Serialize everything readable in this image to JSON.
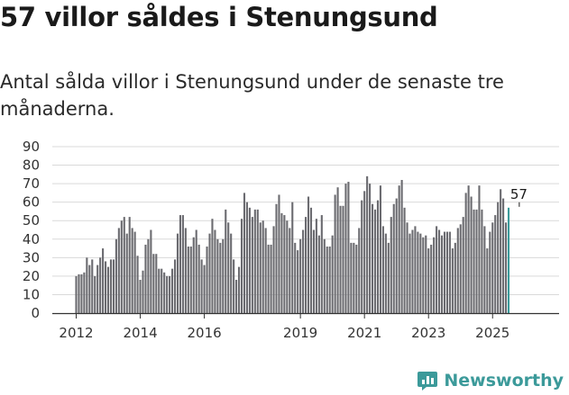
{
  "header": {
    "title": "57 villor såldes i Stenungsund",
    "subtitle": "Antal sålda villor i Stenungsund under de senaste tre månaderna."
  },
  "brand": {
    "name": "Newsworthy",
    "icon": "newsworthy-logo-icon",
    "color": "#3c9a9a"
  },
  "chart_data": {
    "type": "bar",
    "title": "57 villor såldes i Stenungsund",
    "subtitle": "Antal sålda villor i Stenungsund under de senaste tre månaderna.",
    "xlabel": "",
    "ylabel": "",
    "ylim": [
      0,
      90
    ],
    "yticks": [
      0,
      10,
      20,
      30,
      40,
      50,
      60,
      70,
      80,
      90
    ],
    "grid": true,
    "colors": {
      "bar": "#6b6b70",
      "highlight": "#3c9a9a"
    },
    "x_start": "2012-01",
    "x_end": "2025-12",
    "x_ticks": [
      {
        "label": "2012",
        "index": 0
      },
      {
        "label": "2014",
        "index": 24
      },
      {
        "label": "2016",
        "index": 48
      },
      {
        "label": "2019",
        "index": 84
      },
      {
        "label": "2021",
        "index": 108
      },
      {
        "label": "2023",
        "index": 132
      },
      {
        "label": "2025",
        "index": 156
      }
    ],
    "values": [
      20,
      21,
      21,
      22,
      30,
      26,
      29,
      20,
      26,
      30,
      35,
      28,
      25,
      29,
      29,
      40,
      46,
      50,
      52,
      43,
      52,
      46,
      44,
      31,
      18,
      23,
      37,
      40,
      45,
      32,
      32,
      24,
      24,
      22,
      20,
      20,
      24,
      29,
      43,
      53,
      53,
      46,
      36,
      36,
      41,
      45,
      37,
      29,
      26,
      36,
      43,
      51,
      45,
      40,
      38,
      40,
      56,
      49,
      43,
      29,
      18,
      25,
      51,
      65,
      60,
      57,
      52,
      56,
      56,
      49,
      50,
      46,
      37,
      37,
      47,
      59,
      64,
      54,
      53,
      50,
      46,
      60,
      38,
      34,
      40,
      45,
      52,
      63,
      57,
      45,
      51,
      42,
      53,
      40,
      36,
      36,
      42,
      64,
      68,
      58,
      58,
      70,
      71,
      38,
      38,
      37,
      46,
      61,
      66,
      74,
      70,
      59,
      56,
      61,
      69,
      47,
      43,
      38,
      52,
      59,
      62,
      69,
      72,
      57,
      49,
      43,
      45,
      47,
      44,
      43,
      41,
      42,
      35,
      37,
      41,
      47,
      45,
      42,
      44,
      44,
      44,
      35,
      38,
      46,
      48,
      52,
      65,
      69,
      63,
      56,
      56,
      69,
      56,
      47,
      35,
      44,
      49,
      53,
      60,
      67,
      62,
      49,
      57
    ],
    "annotation": {
      "label": "57",
      "index": 166,
      "value": 57
    }
  }
}
